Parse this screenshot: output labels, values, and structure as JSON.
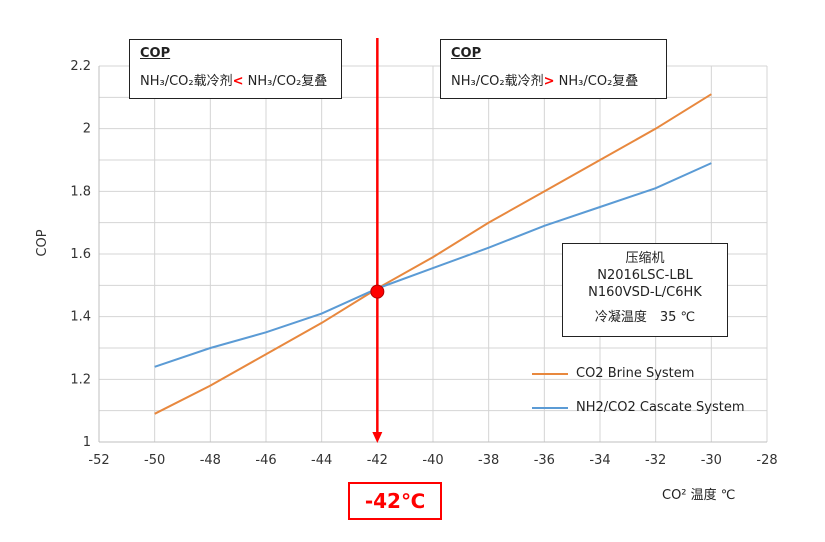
{
  "chart_data": {
    "type": "line",
    "x": [
      -50,
      -48,
      -46,
      -44,
      -42,
      -40,
      -38,
      -36,
      -34,
      -32,
      -30
    ],
    "series": [
      {
        "name": "CO2 Brine System",
        "color": "#e8883e",
        "values": [
          1.09,
          1.18,
          1.28,
          1.38,
          1.49,
          1.59,
          1.7,
          1.8,
          1.9,
          2.0,
          2.11
        ]
      },
      {
        "name": "NH2/CO2 Cascate System",
        "color": "#5b9bd5",
        "values": [
          1.24,
          1.3,
          1.35,
          1.41,
          1.49,
          1.555,
          1.62,
          1.69,
          1.75,
          1.81,
          1.89
        ]
      }
    ],
    "xlim": [
      -52,
      -28
    ],
    "ylim": [
      1,
      2.2
    ],
    "x_ticks": [
      -52,
      -50,
      -48,
      -46,
      -44,
      -42,
      -40,
      -38,
      -36,
      -34,
      -32,
      -30,
      -28
    ],
    "y_ticks": [
      1,
      1.2,
      1.4,
      1.6,
      1.8,
      2,
      2.2
    ],
    "y_minor_step": 0.1,
    "ylabel": "COP",
    "xlabel": "CO² 温度 ℃",
    "grid": true,
    "marker": {
      "x": -42,
      "y": 1.48,
      "label": "-42℃",
      "color": "#ff0000"
    }
  },
  "left_note": {
    "title": "COP",
    "left": "NH₃/CO₂载冷剂",
    "op": "<",
    "right": "NH₃/CO₂复叠"
  },
  "right_note": {
    "title": "COP",
    "left": "NH₃/CO₂载冷剂",
    "op": ">",
    "right": "NH₃/CO₂复叠"
  },
  "info": {
    "line1": "压缩机",
    "line2": "N2016LSC-LBL",
    "line3": "N160VSD-L/C6HK",
    "line4": "冷凝温度　35 ℃"
  }
}
